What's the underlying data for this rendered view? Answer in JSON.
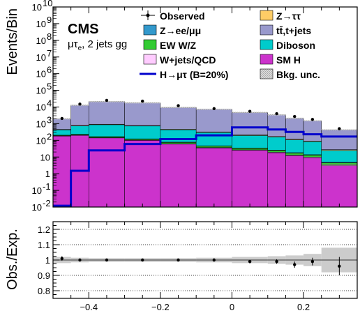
{
  "chart_data": [
    {
      "type": "bar",
      "stacked": true,
      "log_y": true,
      "x_edges": [
        -0.5,
        -0.45,
        -0.4,
        -0.3,
        -0.2,
        -0.1,
        0.0,
        0.1,
        0.15,
        0.2,
        0.25,
        0.35
      ],
      "xlim": [
        -0.5,
        0.35
      ],
      "ylim_exp": [
        -2,
        10
      ],
      "ylabel": "Events/Bin",
      "y_tick_labels": [
        {
          "exp": -2,
          "label": "10"
        },
        {
          "exp": -1,
          "label": "10"
        },
        {
          "exp": 0,
          "label": "1"
        },
        {
          "exp": 1,
          "label": "10"
        },
        {
          "exp": 2,
          "label": "10"
        },
        {
          "exp": 3,
          "label": "10"
        },
        {
          "exp": 4,
          "label": "10"
        },
        {
          "exp": 5,
          "label": "10"
        },
        {
          "exp": 6,
          "label": "10"
        },
        {
          "exp": 7,
          "label": "10"
        },
        {
          "exp": 8,
          "label": "10"
        },
        {
          "exp": 9,
          "label": "10"
        },
        {
          "exp": 10,
          "label": "10"
        }
      ],
      "y_tick_superscripts": [
        "-2",
        "-1",
        "",
        "",
        "2",
        "3",
        "4",
        "5",
        "6",
        "7",
        "8",
        "9",
        "10"
      ],
      "experiment": "CMS",
      "channel_symbol": "μτ",
      "channel_sub": "e",
      "channel_suffix": ", 2 jets gg",
      "series": [
        {
          "name": "SM H",
          "color": "#cc33cc",
          "values": [
            180,
            200,
            140,
            100,
            60,
            35,
            25,
            18,
            12,
            9,
            3
          ]
        },
        {
          "name": "W+jets/QCD",
          "color": "#ffccff",
          "values": [
            5,
            6,
            5,
            4,
            3,
            2,
            2,
            1.5,
            1.2,
            1,
            0.5
          ]
        },
        {
          "name": "EW W/Z",
          "color": "#33cc33",
          "values": [
            15,
            20,
            18,
            15,
            12,
            8,
            6,
            5,
            4,
            3,
            1
          ]
        },
        {
          "name": "Z→ee/μμ",
          "color": "#3399cc",
          "values": [
            5,
            6,
            5,
            4,
            3,
            2,
            1.5,
            1.2,
            1,
            0.8,
            0.3
          ]
        },
        {
          "name": "Diboson",
          "color": "#00cccc",
          "values": [
            220,
            500,
            700,
            600,
            350,
            250,
            160,
            130,
            90,
            70,
            20
          ]
        },
        {
          "name": "Z→ττ",
          "color": "#ffcc66",
          "values": [
            30,
            50,
            60,
            50,
            35,
            25,
            18,
            14,
            10,
            7,
            3
          ]
        },
        {
          "name": "tt̄,t+jets",
          "color": "#9999cc",
          "values": [
            1500,
            12000,
            20000,
            17000,
            9000,
            7000,
            4500,
            3200,
            2000,
            1400,
            400
          ]
        }
      ],
      "signal": {
        "name": "H→μτ (B=20%)",
        "color": "#0000cc",
        "values": [
          0.012,
          1.5,
          25,
          60,
          120,
          200,
          600,
          450,
          320,
          230,
          170
        ]
      },
      "observed": {
        "name": "Observed",
        "x": [
          -0.475,
          -0.425,
          -0.35,
          -0.25,
          -0.15,
          -0.05,
          0.05,
          0.125,
          0.175,
          0.225,
          0.3
        ],
        "y": [
          2050,
          15000,
          25000,
          22500,
          12000,
          8000,
          5500,
          4000,
          2700,
          1800,
          500
        ]
      },
      "legend": [
        {
          "label": "Observed",
          "kind": "point",
          "color": "#000000"
        },
        {
          "label": "Z→ττ",
          "kind": "box",
          "color": "#ffcc66"
        },
        {
          "label": "Z→ee/μμ",
          "kind": "box",
          "color": "#3399cc"
        },
        {
          "label": "tt̄,t+jets",
          "kind": "box",
          "color": "#9999cc"
        },
        {
          "label": "EW W/Z",
          "kind": "box",
          "color": "#33cc33"
        },
        {
          "label": "Diboson",
          "kind": "box",
          "color": "#00cccc"
        },
        {
          "label": "W+jets/QCD",
          "kind": "box",
          "color": "#ffccff"
        },
        {
          "label": "SM H",
          "kind": "box",
          "color": "#cc33cc"
        },
        {
          "label": "H→μτ (B=20%)",
          "kind": "line",
          "color": "#0000cc"
        },
        {
          "label": "Bkg. unc.",
          "kind": "hatch",
          "color": "#aaaaaa"
        }
      ]
    },
    {
      "type": "scatter",
      "ylabel": "Obs./Exp.",
      "xlim": [
        -0.5,
        0.35
      ],
      "ylim": [
        0.75,
        1.25
      ],
      "y_ticks": [
        "0.8",
        "0.9",
        "1",
        "1.1",
        "1.2"
      ],
      "y_tick_values": [
        0.8,
        0.9,
        1.0,
        1.1,
        1.2
      ],
      "x_ticks": [
        "−0.4",
        "−0.2",
        "0",
        "0.2"
      ],
      "x_tick_values": [
        -0.4,
        -0.2,
        0.0,
        0.2
      ],
      "grid_lines": [
        0.8,
        0.9,
        1.1,
        1.2
      ],
      "x_edges": [
        -0.5,
        -0.45,
        -0.4,
        -0.3,
        -0.2,
        -0.1,
        0.0,
        0.1,
        0.15,
        0.2,
        0.25,
        0.35
      ],
      "unc": [
        0.02,
        0.015,
        0.012,
        0.012,
        0.012,
        0.015,
        0.02,
        0.025,
        0.03,
        0.04,
        0.08
      ],
      "points": {
        "x": [
          -0.475,
          -0.425,
          -0.35,
          -0.25,
          -0.15,
          -0.05,
          0.05,
          0.125,
          0.175,
          0.225,
          0.3
        ],
        "y": [
          1.01,
          1.0,
          1.0,
          1.0,
          1.0,
          1.0,
          0.99,
          0.99,
          0.97,
          0.99,
          0.96
        ],
        "err": [
          0.015,
          0.008,
          0.006,
          0.006,
          0.008,
          0.01,
          0.012,
          0.015,
          0.02,
          0.025,
          0.06
        ]
      }
    }
  ]
}
